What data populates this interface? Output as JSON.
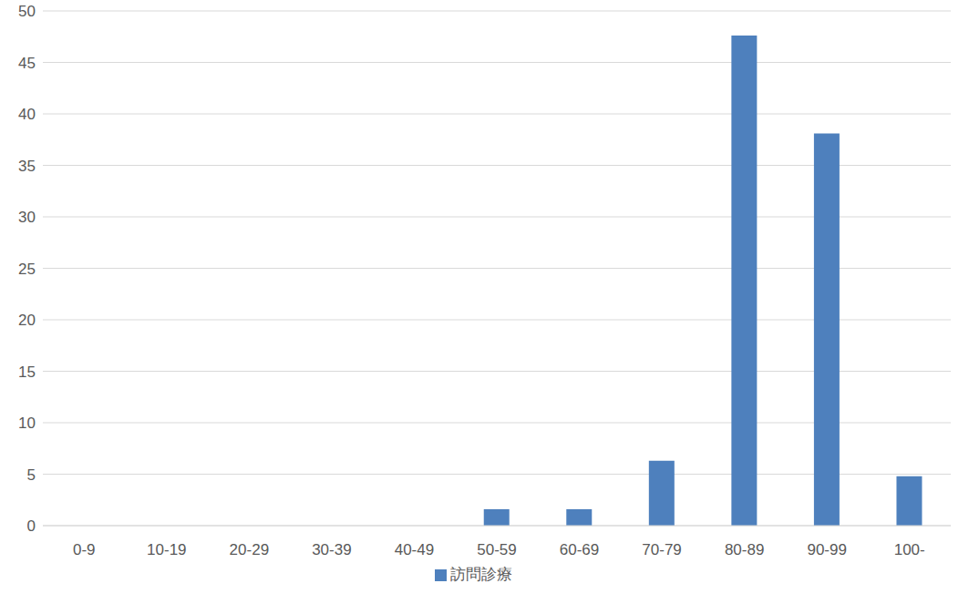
{
  "chart_data": {
    "type": "bar",
    "categories": [
      "0-9",
      "10-19",
      "20-29",
      "30-39",
      "40-49",
      "50-59",
      "60-69",
      "70-79",
      "80-89",
      "90-99",
      "100-"
    ],
    "series": [
      {
        "name": "訪問診療",
        "color": "#4e80bd",
        "values": [
          0,
          0,
          0,
          0,
          0,
          1.6,
          1.6,
          6.3,
          47.6,
          38.1,
          4.8
        ]
      }
    ],
    "ylim": [
      0,
      50
    ],
    "yticks": [
      0,
      5,
      10,
      15,
      20,
      25,
      30,
      35,
      40,
      45,
      50
    ],
    "grid": true,
    "legend": "bottom"
  }
}
